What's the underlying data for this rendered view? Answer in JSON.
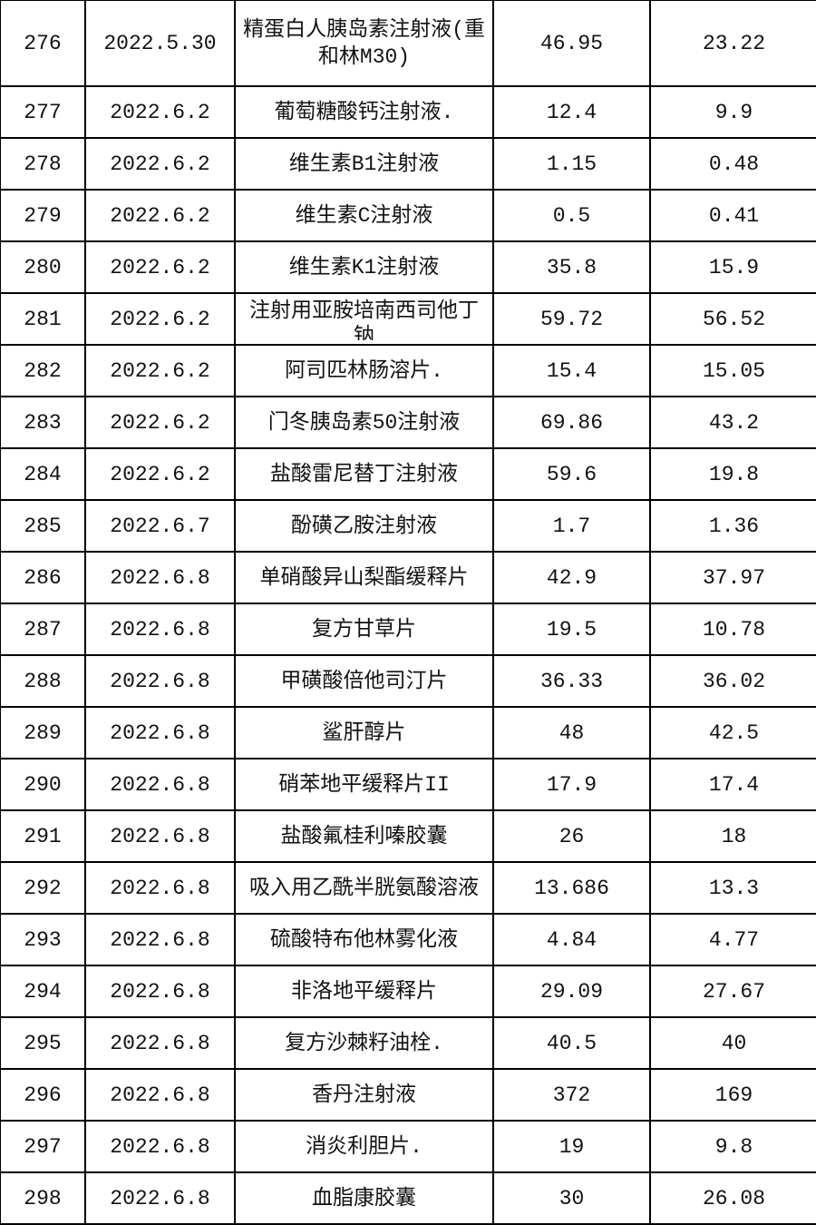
{
  "table": {
    "rows": [
      [
        "276",
        "2022.5.30",
        "精蛋白人胰岛素注射液(重和林M30)",
        "46.95",
        "23.22"
      ],
      [
        "277",
        "2022.6.2",
        "葡萄糖酸钙注射液.",
        "12.4",
        "9.9"
      ],
      [
        "278",
        "2022.6.2",
        "维生素B1注射液",
        "1.15",
        "0.48"
      ],
      [
        "279",
        "2022.6.2",
        "维生素C注射液",
        "0.5",
        "0.41"
      ],
      [
        "280",
        "2022.6.2",
        "维生素K1注射液",
        "35.8",
        "15.9"
      ],
      [
        "281",
        "2022.6.2",
        "注射用亚胺培南西司他丁钠",
        "59.72",
        "56.52"
      ],
      [
        "282",
        "2022.6.2",
        "阿司匹林肠溶片.",
        "15.4",
        "15.05"
      ],
      [
        "283",
        "2022.6.2",
        "门冬胰岛素50注射液",
        "69.86",
        "43.2"
      ],
      [
        "284",
        "2022.6.2",
        "盐酸雷尼替丁注射液",
        "59.6",
        "19.8"
      ],
      [
        "285",
        "2022.6.7",
        "酚磺乙胺注射液",
        "1.7",
        "1.36"
      ],
      [
        "286",
        "2022.6.8",
        "单硝酸异山梨酯缓释片",
        "42.9",
        "37.97"
      ],
      [
        "287",
        "2022.6.8",
        "复方甘草片",
        "19.5",
        "10.78"
      ],
      [
        "288",
        "2022.6.8",
        "甲磺酸倍他司汀片",
        "36.33",
        "36.02"
      ],
      [
        "289",
        "2022.6.8",
        "鲨肝醇片",
        "48",
        "42.5"
      ],
      [
        "290",
        "2022.6.8",
        "硝苯地平缓释片II",
        "17.9",
        "17.4"
      ],
      [
        "291",
        "2022.6.8",
        "盐酸氟桂利嗪胶囊",
        "26",
        "18"
      ],
      [
        "292",
        "2022.6.8",
        "吸入用乙酰半胱氨酸溶液",
        "13.686",
        "13.3"
      ],
      [
        "293",
        "2022.6.8",
        "硫酸特布他林雾化液",
        "4.84",
        "4.77"
      ],
      [
        "294",
        "2022.6.8",
        "非洛地平缓释片",
        "29.09",
        "27.67"
      ],
      [
        "295",
        "2022.6.8",
        "复方沙棘籽油栓.",
        "40.5",
        "40"
      ],
      [
        "296",
        "2022.6.8",
        "香丹注射液",
        "372",
        "169"
      ],
      [
        "297",
        "2022.6.8",
        "消炎利胆片.",
        "19",
        "9.8"
      ],
      [
        "298",
        "2022.6.8",
        "血脂康胶囊",
        "30",
        "26.08"
      ]
    ]
  }
}
